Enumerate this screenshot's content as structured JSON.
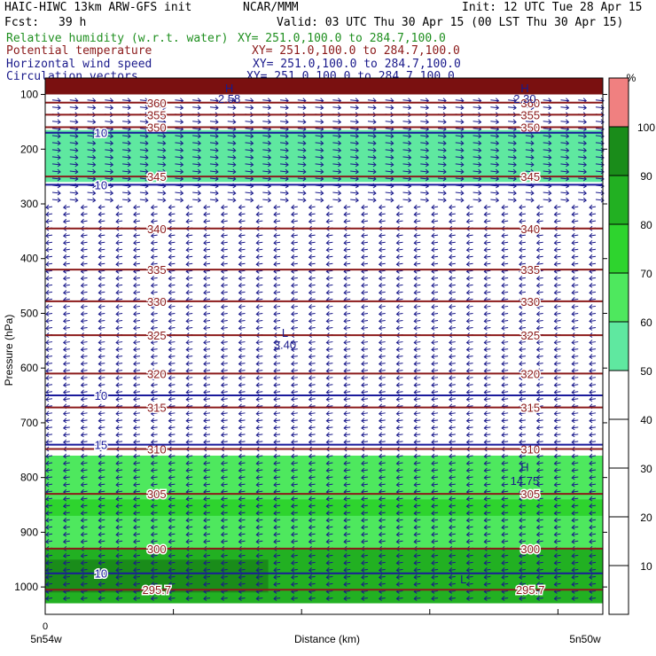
{
  "header": {
    "model_line": "HAIC-HIWC 13km ARW-GFS init",
    "org": "NCAR/MMM",
    "init": "Init: 12 UTC Tue 28 Apr 15",
    "fcst_label": "Fcst:",
    "fcst_value": "39 h",
    "valid": "Valid: 03 UTC Thu 30 Apr 15 (00 LST Thu 30 Apr 15)"
  },
  "legend": [
    {
      "name": "Relative humidity (w.r.t. water)",
      "xy": "XY= 251.0,100.0 to 284.7,100.0",
      "color": "#1f8f1f"
    },
    {
      "name": "Potential temperature",
      "xy": "XY= 251.0,100.0 to 284.7,100.0",
      "color": "#8b1a1a"
    },
    {
      "name": "Horizontal wind speed",
      "xy": "XY= 251.0,100.0 to 284.7,100.0",
      "color": "#1a1a8b"
    },
    {
      "name": "Circulation vectors",
      "xy": "XY= 251.0,100.0 to 284.7,100.0",
      "color": "#1a1a8b"
    }
  ],
  "chart_data": {
    "type": "heatmap",
    "xlabel": "Distance (km)",
    "ylabel": "Pressure (hPa)",
    "x_tick_zero": "0",
    "x_left_label": "5n54w",
    "x_right_label": "5n50w",
    "y_ticks": [
      100,
      200,
      300,
      400,
      500,
      600,
      700,
      800,
      900,
      1000
    ],
    "ylim": [
      1050,
      70
    ],
    "colorbar": {
      "unit": "%",
      "ticks": [
        10,
        20,
        30,
        40,
        50,
        60,
        70,
        80,
        90,
        100
      ],
      "bins": [
        {
          "from": 0,
          "to": 50,
          "color": "#ffffff"
        },
        {
          "from": 50,
          "to": 60,
          "color": "#5fe8a0"
        },
        {
          "from": 60,
          "to": 70,
          "color": "#4ee85e"
        },
        {
          "from": 70,
          "to": 80,
          "color": "#2ed42e"
        },
        {
          "from": 80,
          "to": 90,
          "color": "#22b022"
        },
        {
          "from": 90,
          "to": 100,
          "color": "#1a8c1a"
        },
        {
          "from": 100,
          "to": 110,
          "color": "#f08080"
        }
      ]
    },
    "rh_regions": [
      {
        "p_top": 70,
        "p_bottom": 100,
        "bin": 6,
        "note": "top band"
      },
      {
        "p_top": 100,
        "p_bottom": 165,
        "bin": 0
      },
      {
        "p_top": 165,
        "p_bottom": 260,
        "bin": 1
      },
      {
        "p_top": 670,
        "p_bottom": 760,
        "bin": 0
      },
      {
        "p_top": 760,
        "p_bottom": 930,
        "bin": 2
      },
      {
        "p_top": 930,
        "p_bottom": 1030,
        "bin": 4
      }
    ],
    "theta_contours": [
      {
        "value": "360",
        "p": 115
      },
      {
        "value": "355",
        "p": 137
      },
      {
        "value": "350",
        "p": 160
      },
      {
        "value": "345",
        "p": 250
      },
      {
        "value": "340",
        "p": 345
      },
      {
        "value": "335",
        "p": 420
      },
      {
        "value": "330",
        "p": 478
      },
      {
        "value": "325",
        "p": 540
      },
      {
        "value": "320",
        "p": 610
      },
      {
        "value": "315",
        "p": 672
      },
      {
        "value": "310",
        "p": 748
      },
      {
        "value": "305",
        "p": 830
      },
      {
        "value": "300",
        "p": 930
      },
      {
        "value": "295.7",
        "p": 1005
      }
    ],
    "wind_contours": [
      {
        "value": "10",
        "p": 170
      },
      {
        "value": "10",
        "p": 265
      },
      {
        "value": "10",
        "p": 650
      },
      {
        "value": "15",
        "p": 740
      },
      {
        "value": "10",
        "p": 975
      }
    ],
    "annotations": [
      {
        "text": "L",
        "p": 535,
        "xf": 0.43
      },
      {
        "text": "3.40",
        "p": 557,
        "xf": 0.43
      },
      {
        "text": "H",
        "p": 780,
        "xf": 0.86
      },
      {
        "text": "14.75",
        "p": 805,
        "xf": 0.86
      },
      {
        "text": "H",
        "p": 88,
        "xf": 0.33
      },
      {
        "text": "2.58",
        "p": 107,
        "xf": 0.33
      },
      {
        "text": "H",
        "p": 88,
        "xf": 0.86
      },
      {
        "text": "2.30",
        "p": 107,
        "xf": 0.86
      },
      {
        "text": "L",
        "p": 985,
        "xf": 0.75
      }
    ]
  }
}
